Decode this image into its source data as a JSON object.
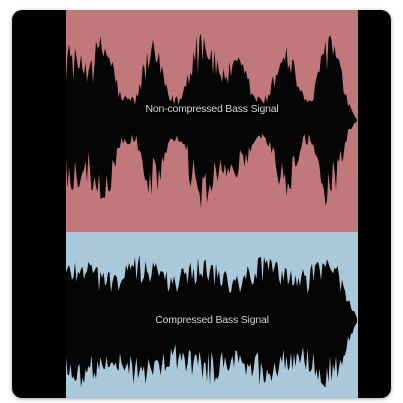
{
  "image": {
    "top_panel": {
      "label": "Non-compressed Bass Signal",
      "background": "#c0787a",
      "waveform_color": "#050505"
    },
    "bottom_panel": {
      "label": "Compressed Bass Signal",
      "background": "#a9c8d9",
      "waveform_color": "#050505"
    },
    "frame_color": "#000000"
  }
}
